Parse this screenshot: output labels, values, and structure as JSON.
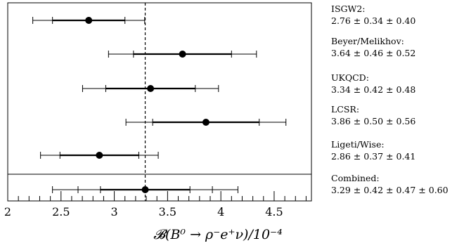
{
  "chart_data": {
    "type": "scatter",
    "xlabel": "𝓑(B⁰ → ρ⁻e⁺ν)/10⁻⁴",
    "xlim": [
      2.0,
      4.85
    ],
    "x_ticks": [
      "2",
      "2.5",
      "3",
      "3.5",
      "4",
      "4.5"
    ],
    "x_tick_values": [
      2.0,
      2.5,
      3.0,
      3.5,
      4.0,
      4.5
    ],
    "reference_line": {
      "x": 3.29,
      "style": "dashed"
    },
    "measurements": [
      {
        "name": "ISGW2:",
        "label": "2.76 ± 0.34 ± 0.40",
        "value": 2.76,
        "errors": [
          0.34,
          0.4
        ]
      },
      {
        "name": "Beyer/Melikhov:",
        "label": "3.64 ± 0.46 ± 0.52",
        "value": 3.64,
        "errors": [
          0.46,
          0.52
        ]
      },
      {
        "name": "UKQCD:",
        "label": "3.34 ± 0.42 ± 0.48",
        "value": 3.34,
        "errors": [
          0.42,
          0.48
        ]
      },
      {
        "name": "LCSR:",
        "label": "3.86 ± 0.50 ± 0.56",
        "value": 3.86,
        "errors": [
          0.5,
          0.56
        ]
      },
      {
        "name": "Ligeti/Wise:",
        "label": "2.86 ± 0.37 ± 0.41",
        "value": 2.86,
        "errors": [
          0.37,
          0.41
        ]
      },
      {
        "name": "Combined:",
        "label": "3.29 ± 0.42 ± 0.47 ± 0.60",
        "value": 3.29,
        "errors": [
          0.42,
          0.47,
          0.6
        ]
      }
    ]
  }
}
